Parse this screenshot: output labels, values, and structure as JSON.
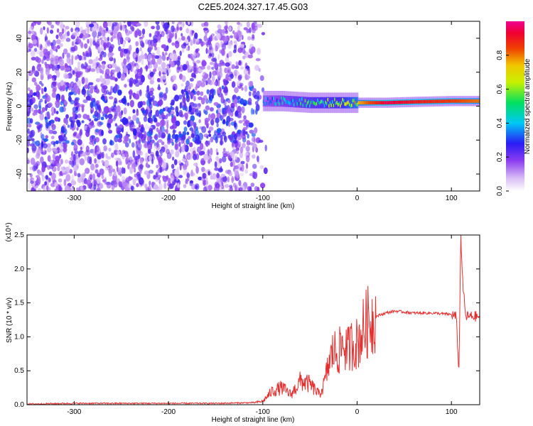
{
  "title": "C2E5.2024.327.17.45.G03",
  "chart_data": [
    {
      "type": "heatmap",
      "xlabel": "Height of straight line (km)",
      "ylabel": "Frequency (Hz)",
      "xlim": [
        -350,
        130
      ],
      "ylim": [
        -50,
        50
      ],
      "xticks": [
        -300,
        -200,
        -100,
        0,
        100
      ],
      "yticks": [
        -40,
        -20,
        0,
        20,
        40
      ],
      "colorbar": {
        "label": "Normalized spectral amplitude",
        "range": [
          0,
          1
        ],
        "ticks": [
          0.0,
          0.2,
          0.4,
          0.6,
          0.8
        ],
        "colormap": "rainbow (white-purple-blue-cyan-green-yellow-red-magenta)"
      },
      "description_values": {
        "noise_region_x": [
          -350,
          -100
        ],
        "noise_amplitude_range": [
          0.05,
          0.25
        ],
        "signal_track": [
          {
            "x": -100,
            "freq": 3,
            "amp": 0.35
          },
          {
            "x": -80,
            "freq": 3,
            "amp": 0.45
          },
          {
            "x": -50,
            "freq": 2,
            "amp": 0.55
          },
          {
            "x": -20,
            "freq": 2,
            "amp": 0.6
          },
          {
            "x": 0,
            "freq": 2,
            "amp": 0.75
          },
          {
            "x": 30,
            "freq": 2,
            "amp": 0.95
          },
          {
            "x": 60,
            "freq": 2.5,
            "amp": 0.9
          },
          {
            "x": 100,
            "freq": 3,
            "amp": 0.85
          },
          {
            "x": 130,
            "freq": 3,
            "amp": 0.8
          }
        ]
      }
    },
    {
      "type": "line",
      "xlabel": "Height of straight line (km)",
      "ylabel": "SNR (10 * v/v)",
      "yscale_note": "(x10⁴)",
      "xlim": [
        -350,
        130
      ],
      "ylim": [
        0,
        2.5
      ],
      "xticks": [
        -300,
        -200,
        -100,
        0,
        100
      ],
      "yticks": [
        "0.0",
        "0.5",
        "1.0",
        "1.5",
        "2.0",
        "2.5"
      ],
      "color": "#e53030",
      "series": [
        {
          "x": [
            -350,
            -300,
            -250,
            -200,
            -150,
            -110,
            -100,
            -90,
            -80,
            -70,
            -60,
            -50,
            -40,
            -35,
            -30,
            -25,
            -20,
            -15,
            -10,
            -5,
            0,
            10,
            20,
            30,
            40,
            60,
            80,
            100,
            105,
            108,
            110,
            112,
            115,
            120,
            130
          ],
          "y": [
            0.01,
            0.02,
            0.02,
            0.02,
            0.02,
            0.03,
            0.05,
            0.2,
            0.25,
            0.15,
            0.35,
            0.3,
            0.15,
            0.3,
            0.6,
            0.8,
            0.75,
            0.9,
            0.8,
            0.9,
            0.9,
            1.2,
            1.3,
            1.35,
            1.38,
            1.35,
            1.35,
            1.33,
            1.3,
            0.5,
            2.5,
            1.8,
            1.3,
            1.3,
            1.3
          ]
        }
      ]
    }
  ]
}
